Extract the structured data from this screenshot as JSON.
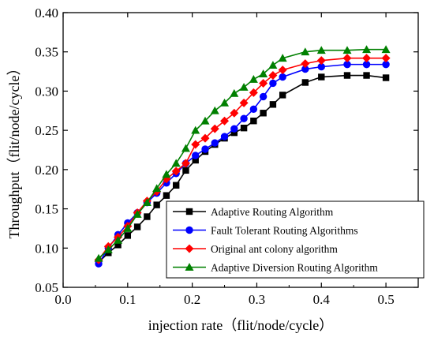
{
  "chart_data": {
    "type": "line",
    "xlabel": "injection rate（flit/node/cycle）",
    "ylabel": "Throughput（flit/node/cycle）",
    "xlim": [
      0.0,
      0.55
    ],
    "ylim": [
      0.05,
      0.4
    ],
    "xticks": [
      "0.0",
      "0.1",
      "0.2",
      "0.3",
      "0.4",
      "0.5"
    ],
    "yticks": [
      "0.05",
      "0.10",
      "0.15",
      "0.20",
      "0.25",
      "0.30",
      "0.35",
      "0.40"
    ],
    "grid": false,
    "legend_position": "bottom-right",
    "series": [
      {
        "name": "Adaptive Routing Algorithm",
        "color": "#000000",
        "marker": "square",
        "x": [
          0.055,
          0.07,
          0.085,
          0.1,
          0.115,
          0.13,
          0.145,
          0.16,
          0.175,
          0.19,
          0.205,
          0.22,
          0.235,
          0.25,
          0.265,
          0.28,
          0.295,
          0.31,
          0.325,
          0.34,
          0.375,
          0.4,
          0.44,
          0.47,
          0.5
        ],
        "values": [
          0.082,
          0.094,
          0.104,
          0.116,
          0.127,
          0.14,
          0.155,
          0.167,
          0.18,
          0.199,
          0.212,
          0.223,
          0.232,
          0.24,
          0.247,
          0.253,
          0.262,
          0.272,
          0.283,
          0.295,
          0.311,
          0.318,
          0.32,
          0.32,
          0.317
        ]
      },
      {
        "name": "Fault Tolerant Routing Algorithms",
        "color": "#0000ff",
        "marker": "circle",
        "x": [
          0.055,
          0.07,
          0.085,
          0.1,
          0.115,
          0.13,
          0.145,
          0.16,
          0.175,
          0.19,
          0.205,
          0.22,
          0.235,
          0.25,
          0.265,
          0.28,
          0.295,
          0.31,
          0.325,
          0.34,
          0.375,
          0.4,
          0.44,
          0.47,
          0.5
        ],
        "values": [
          0.08,
          0.1,
          0.117,
          0.132,
          0.145,
          0.158,
          0.17,
          0.183,
          0.195,
          0.208,
          0.218,
          0.226,
          0.234,
          0.242,
          0.252,
          0.265,
          0.277,
          0.293,
          0.31,
          0.318,
          0.328,
          0.331,
          0.334,
          0.334,
          0.334
        ]
      },
      {
        "name": "Original ant colony algorithm",
        "color": "#ff0000",
        "marker": "diamond",
        "x": [
          0.055,
          0.07,
          0.085,
          0.1,
          0.115,
          0.13,
          0.145,
          0.16,
          0.175,
          0.19,
          0.205,
          0.22,
          0.235,
          0.25,
          0.265,
          0.28,
          0.295,
          0.31,
          0.325,
          0.34,
          0.375,
          0.4,
          0.44,
          0.47,
          0.5
        ],
        "values": [
          0.085,
          0.102,
          0.114,
          0.128,
          0.145,
          0.16,
          0.172,
          0.188,
          0.198,
          0.208,
          0.232,
          0.24,
          0.252,
          0.262,
          0.272,
          0.285,
          0.298,
          0.31,
          0.32,
          0.327,
          0.335,
          0.339,
          0.342,
          0.342,
          0.342
        ]
      },
      {
        "name": "Adaptive Diversion Routing Algorithm",
        "color": "#008000",
        "marker": "triangle",
        "x": [
          0.055,
          0.07,
          0.085,
          0.1,
          0.115,
          0.13,
          0.145,
          0.16,
          0.175,
          0.19,
          0.205,
          0.22,
          0.235,
          0.25,
          0.265,
          0.28,
          0.295,
          0.31,
          0.325,
          0.34,
          0.375,
          0.4,
          0.44,
          0.47,
          0.5
        ],
        "values": [
          0.087,
          0.098,
          0.11,
          0.125,
          0.143,
          0.158,
          0.176,
          0.194,
          0.208,
          0.227,
          0.25,
          0.262,
          0.275,
          0.285,
          0.297,
          0.305,
          0.315,
          0.322,
          0.333,
          0.342,
          0.35,
          0.352,
          0.352,
          0.353,
          0.353
        ]
      }
    ]
  }
}
